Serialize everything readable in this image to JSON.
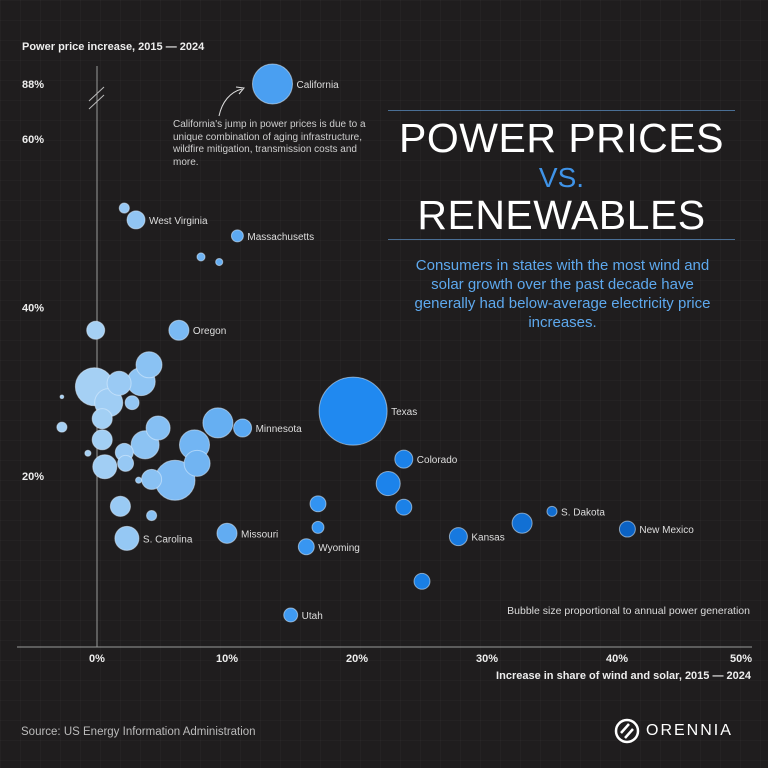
{
  "header": {
    "y_axis_title": "Power price increase, 2015 — 2024"
  },
  "title": {
    "line1": "POWER PRICES",
    "vs": "VS.",
    "line2": "RENEWABLES"
  },
  "subtitle": "Consumers in states with the most wind and solar growth over the past decade have generally had below-average electricity price increases.",
  "annotation": "California's jump in power prices is due to a unique combination of aging infrastructure, wildfire mitigation, transmission costs and more.",
  "bubble_note": "Bubble size proportional to annual power generation",
  "source": "Source: US Energy Information Administration",
  "logo": {
    "text": "ORENNIA"
  },
  "colors": {
    "background": "#1f1d1e",
    "low_renewables": "#a5d0f4",
    "mid_renewables": "#1e88f0",
    "high_renewables": "#0b62c4",
    "accent": "#3f93e8"
  },
  "chart_data": {
    "type": "scatter",
    "variant": "bubble",
    "xlabel": "Increase in share of wind and solar, 2015 — 2024",
    "ylabel": "Power price increase, 2015 — 2024",
    "xlim": [
      -6,
      50
    ],
    "ylim": [
      0,
      88
    ],
    "y_axis_break": [
      60,
      88
    ],
    "x_ticks": [
      "0%",
      "10%",
      "20%",
      "30%",
      "40%",
      "50%"
    ],
    "x_tick_values": [
      0,
      10,
      20,
      30,
      40,
      50
    ],
    "y_ticks": [
      "20%",
      "40%",
      "60%",
      "88%"
    ],
    "y_tick_values": [
      20,
      40,
      60,
      88
    ],
    "grid": false,
    "size_note": "relative annual power generation (Texas = 100)",
    "points": [
      {
        "label": "California",
        "x": 13.5,
        "y": 88,
        "size": 34.6
      },
      {
        "label": "West Virginia",
        "x": 3.0,
        "y": 50.4,
        "size": 7.0
      },
      {
        "label": "",
        "x": 2.1,
        "y": 51.8,
        "size": 2.2
      },
      {
        "label": "Massachusetts",
        "x": 10.8,
        "y": 48.5,
        "size": 3.1
      },
      {
        "label": "",
        "x": 8.0,
        "y": 46.0,
        "size": 1.4
      },
      {
        "label": "",
        "x": 9.4,
        "y": 45.4,
        "size": 1.1
      },
      {
        "label": "",
        "x": -0.1,
        "y": 37.3,
        "size": 7.0
      },
      {
        "label": "Oregon",
        "x": 6.3,
        "y": 37.3,
        "size": 8.7
      },
      {
        "label": "",
        "x": 4.0,
        "y": 33.2,
        "size": 14.6
      },
      {
        "label": "",
        "x": -0.2,
        "y": 30.6,
        "size": 31.2
      },
      {
        "label": "",
        "x": 1.7,
        "y": 31.0,
        "size": 12.5
      },
      {
        "label": "",
        "x": 3.4,
        "y": 31.2,
        "size": 17.0
      },
      {
        "label": "",
        "x": 0.9,
        "y": 28.7,
        "size": 17.0
      },
      {
        "label": "",
        "x": 2.7,
        "y": 28.7,
        "size": 4.2
      },
      {
        "label": "",
        "x": -2.7,
        "y": 29.4,
        "size": 0.3
      },
      {
        "label": "",
        "x": -2.7,
        "y": 25.8,
        "size": 2.2
      },
      {
        "label": "",
        "x": 0.4,
        "y": 26.8,
        "size": 8.7
      },
      {
        "label": "",
        "x": 4.7,
        "y": 25.7,
        "size": 12.5
      },
      {
        "label": "",
        "x": 9.3,
        "y": 26.3,
        "size": 19.5
      },
      {
        "label": "Minnesota",
        "x": 11.2,
        "y": 25.7,
        "size": 7.0
      },
      {
        "label": "",
        "x": 0.4,
        "y": 24.3,
        "size": 8.7
      },
      {
        "label": "",
        "x": 7.5,
        "y": 23.7,
        "size": 19.5
      },
      {
        "label": "",
        "x": 3.7,
        "y": 23.7,
        "size": 17.0
      },
      {
        "label": "",
        "x": 2.1,
        "y": 22.8,
        "size": 7.0
      },
      {
        "label": "",
        "x": -0.7,
        "y": 22.7,
        "size": 0.8
      },
      {
        "label": "",
        "x": 2.2,
        "y": 21.5,
        "size": 5.5
      },
      {
        "label": "",
        "x": 0.6,
        "y": 21.1,
        "size": 12.5
      },
      {
        "label": "",
        "x": 7.7,
        "y": 21.5,
        "size": 14.6
      },
      {
        "label": "",
        "x": 6.0,
        "y": 19.5,
        "size": 34.6
      },
      {
        "label": "",
        "x": 4.2,
        "y": 19.6,
        "size": 8.7
      },
      {
        "label": "",
        "x": 3.2,
        "y": 19.5,
        "size": 0.8
      },
      {
        "label": "",
        "x": 1.8,
        "y": 16.4,
        "size": 8.7
      },
      {
        "label": "",
        "x": 4.2,
        "y": 15.3,
        "size": 2.2
      },
      {
        "label": "S. Carolina",
        "x": 2.3,
        "y": 12.6,
        "size": 12.5
      },
      {
        "label": "Missouri",
        "x": 10.0,
        "y": 13.2,
        "size": 8.7
      },
      {
        "label": "Texas",
        "x": 19.7,
        "y": 27.7,
        "size": 100
      },
      {
        "label": "Colorado",
        "x": 23.6,
        "y": 22.0,
        "size": 7.0
      },
      {
        "label": "",
        "x": 22.4,
        "y": 19.1,
        "size": 12.5
      },
      {
        "label": "",
        "x": 17.0,
        "y": 16.7,
        "size": 5.5
      },
      {
        "label": "",
        "x": 23.6,
        "y": 16.3,
        "size": 5.5
      },
      {
        "label": "",
        "x": 17.0,
        "y": 13.9,
        "size": 3.1
      },
      {
        "label": "Wyoming",
        "x": 16.1,
        "y": 11.6,
        "size": 5.5
      },
      {
        "label": "",
        "x": 25.0,
        "y": 7.5,
        "size": 5.5
      },
      {
        "label": "Utah",
        "x": 14.9,
        "y": 3.5,
        "size": 4.2
      },
      {
        "label": "Kansas",
        "x": 27.8,
        "y": 12.8,
        "size": 7.0
      },
      {
        "label": "",
        "x": 32.7,
        "y": 14.4,
        "size": 8.7
      },
      {
        "label": "S. Dakota",
        "x": 35.0,
        "y": 15.8,
        "size": 2.2
      },
      {
        "label": "New Mexico",
        "x": 40.8,
        "y": 13.7,
        "size": 5.5
      }
    ]
  }
}
